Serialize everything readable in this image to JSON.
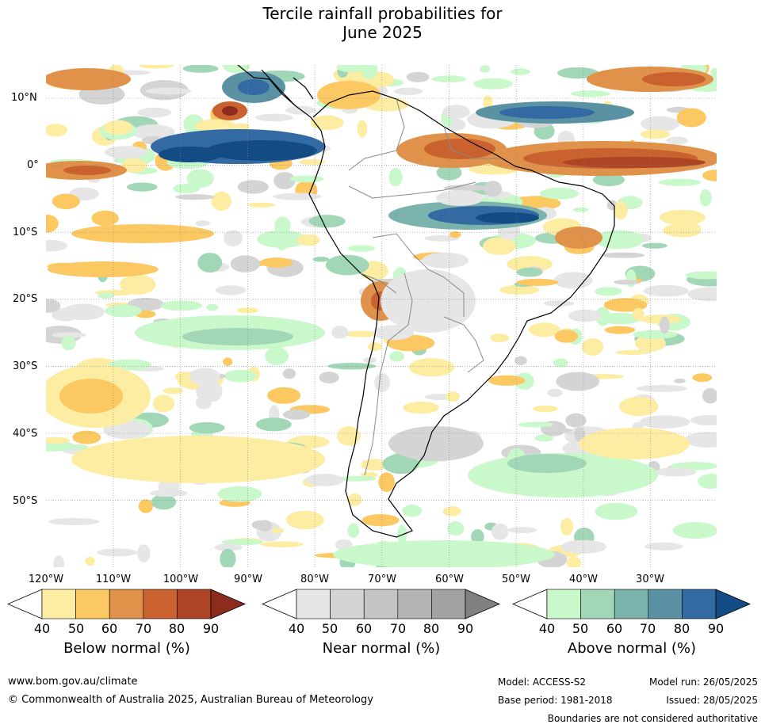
{
  "title_line1": "Tercile rainfall probabilities for",
  "title_line2": "June 2025",
  "lat_labels": [
    "10°N",
    "0°",
    "10°S",
    "20°S",
    "30°S",
    "40°S",
    "50°S"
  ],
  "lon_labels": [
    "120°W",
    "110°W",
    "100°W",
    "90°W",
    "80°W",
    "70°W",
    "60°W",
    "50°W",
    "40°W",
    "30°W"
  ],
  "colorbars": [
    {
      "title": "Below normal (%)",
      "ticks": [
        "40",
        "50",
        "60",
        "70",
        "80",
        "90"
      ],
      "colors": [
        "#ffffff",
        "#fdeda2",
        "#fcc862",
        "#e0914a",
        "#c9622f",
        "#ad4425",
        "#8d2c1d"
      ]
    },
    {
      "title": "Near normal (%)",
      "ticks": [
        "40",
        "50",
        "60",
        "70",
        "80",
        "90"
      ],
      "colors": [
        "#ffffff",
        "#e6e6e6",
        "#d4d4d4",
        "#c4c4c4",
        "#b4b4b4",
        "#a2a2a2",
        "#808080"
      ]
    },
    {
      "title": "Above normal (%)",
      "ticks": [
        "40",
        "50",
        "60",
        "70",
        "80",
        "90"
      ],
      "colors": [
        "#ffffff",
        "#c9f8cb",
        "#a1d6b6",
        "#7ab3ab",
        "#5a91a3",
        "#336aa3",
        "#134b85"
      ]
    }
  ],
  "footer": {
    "website": "www.bom.gov.au/climate",
    "copyright": "© Commonwealth of Australia 2025, Australian Bureau of Meteorology",
    "model": "Model: ACCESS-S2",
    "base_period": "Base period: 1981-2018",
    "model_run": "Model run: 26/05/2025",
    "issued": "Issued: 28/05/2025",
    "disclaimer": "Boundaries are not considered authoritative"
  }
}
